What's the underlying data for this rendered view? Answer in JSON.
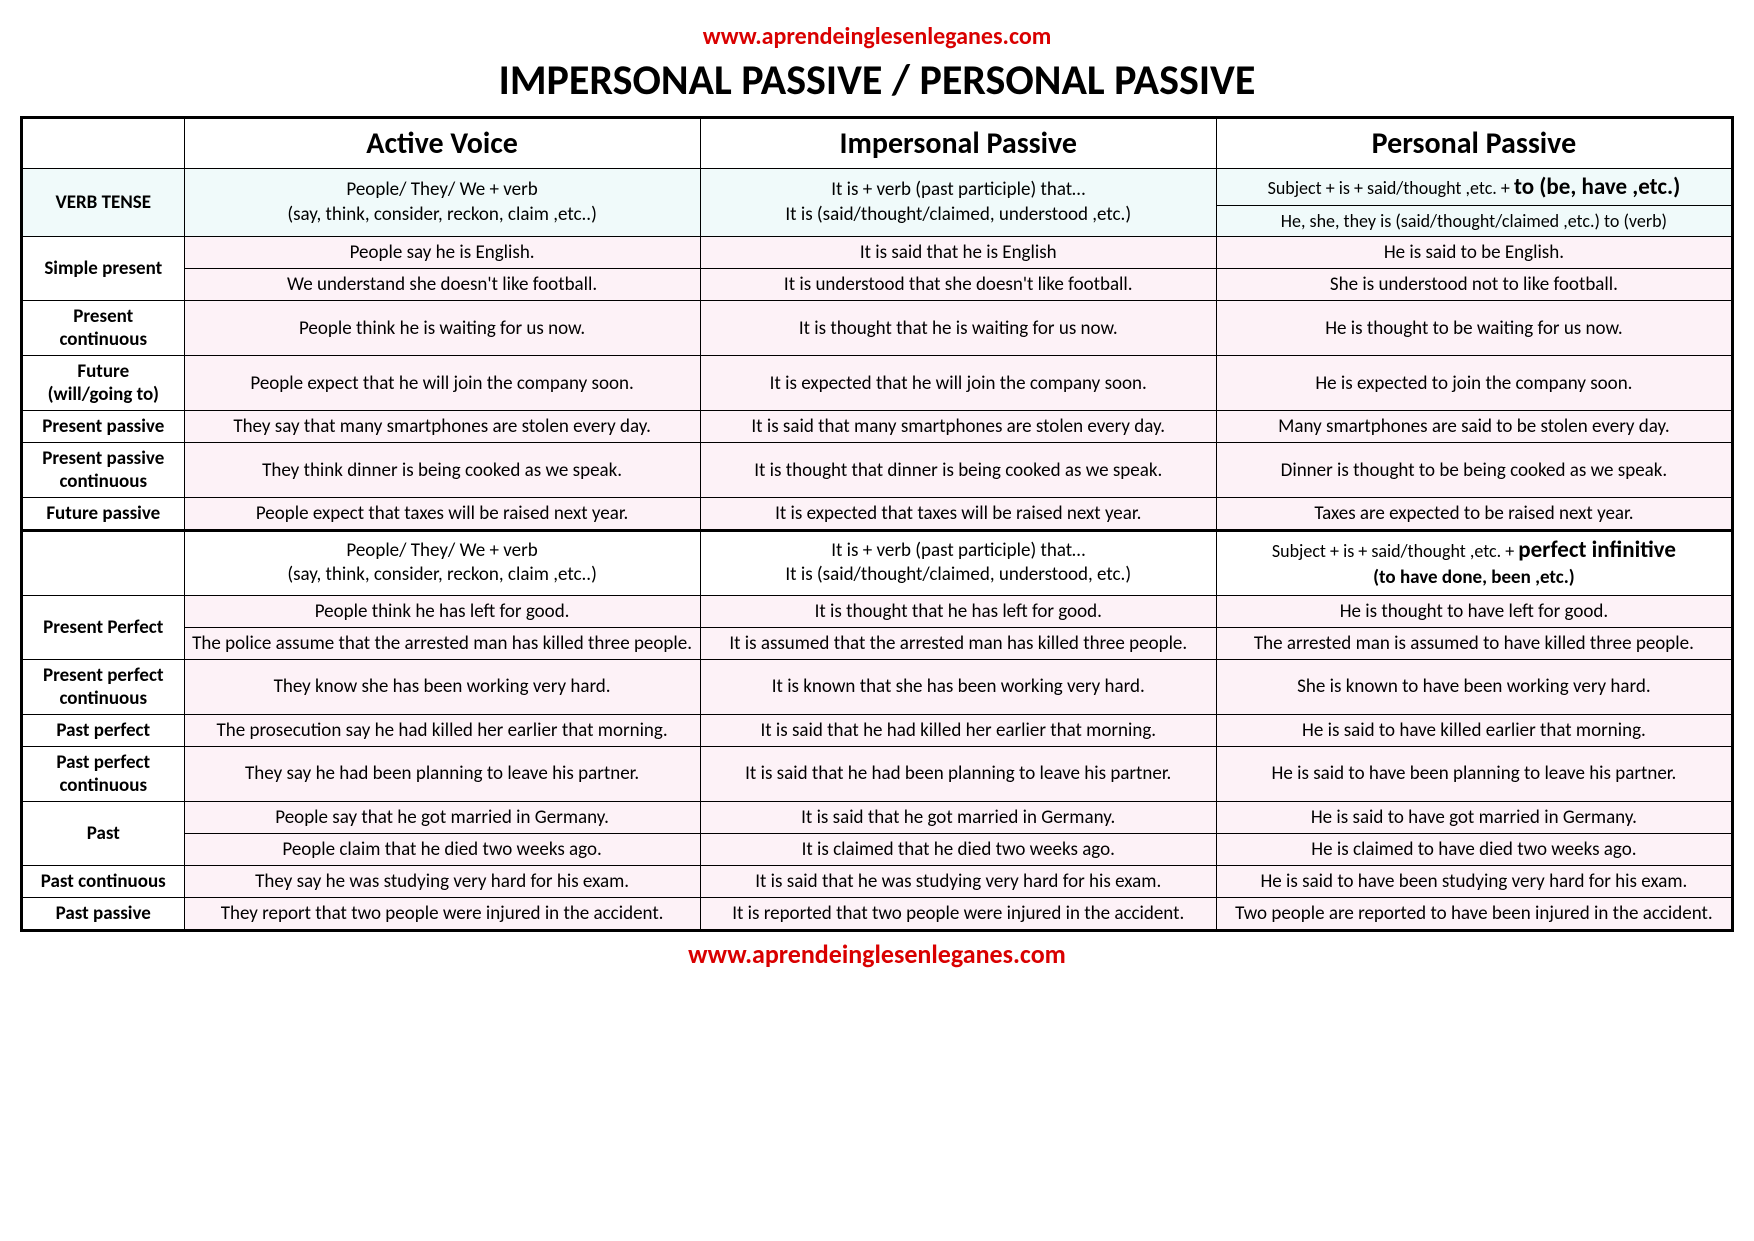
{
  "colors": {
    "url_color": "#d90000",
    "title_color": "#000000",
    "tint_header_bg": "#f0fafa",
    "pink_bg": "#fdf2f7",
    "border": "#000000"
  },
  "url": "www.aprendeinglesenleganes.com",
  "title": "IMPERSONAL PASSIVE / PERSONAL PASSIVE",
  "columns": {
    "tense": "VERB TENSE",
    "active": "Active Voice",
    "impersonal": "Impersonal Passive",
    "personal": "Personal Passive"
  },
  "formula1": {
    "active_l1": "People/ They/ We + verb",
    "active_l2": "(say, think, consider, reckon, claim ,etc..)",
    "impersonal_l1": "It is + verb (past participle) that…",
    "impersonal_l2": "It is (said/thought/claimed, understood ,etc.)",
    "personal_top_pre": "Subject + is + said/thought ,etc. + ",
    "personal_top_bold": "to (be, have ,etc.)",
    "personal_bottom": "He, she, they is (said/thought/claimed ,etc.) to (verb)"
  },
  "rows1": [
    {
      "tense": "Simple present",
      "span": 2,
      "cells": [
        [
          "People say he is English.",
          "It is said that he is English",
          "He is said to be English."
        ],
        [
          "We understand she doesn't like football.",
          "It is understood that she doesn't like football.",
          "She is understood not to like football."
        ]
      ]
    },
    {
      "tense": "Present continuous",
      "span": 1,
      "cells": [
        [
          "People think he is waiting for us now.",
          "It is thought that he is waiting for us now.",
          "He is thought to be waiting for us now."
        ]
      ]
    },
    {
      "tense": "Future (will/going to)",
      "span": 1,
      "cells": [
        [
          "People expect that he will join the company soon.",
          "It is expected that he will join the company soon.",
          "He is expected to join the company soon."
        ]
      ]
    },
    {
      "tense": "Present passive",
      "span": 1,
      "cells": [
        [
          "They say that many smartphones are stolen every day.",
          "It is said that  many smartphones are stolen every day.",
          "Many smartphones are said to be stolen every day."
        ]
      ]
    },
    {
      "tense": "Present passive continuous",
      "span": 1,
      "cells": [
        [
          "They think dinner is being cooked as we speak.",
          "It is thought that dinner is being cooked as we speak.",
          "Dinner is thought to be being cooked as we speak."
        ]
      ]
    },
    {
      "tense": "Future passive",
      "span": 1,
      "cells": [
        [
          "People expect that taxes will be raised next year.",
          "It is expected that taxes will be raised next year.",
          "Taxes are expected to be raised next year."
        ]
      ]
    }
  ],
  "formula2": {
    "active_l1": "People/ They/ We + verb",
    "active_l2": "(say, think, consider, reckon, claim ,etc..)",
    "impersonal_l1": "It is + verb (past participle) that…",
    "impersonal_l2": "It is (said/thought/claimed, understood, etc.)",
    "personal_pre": "Subject + is + said/thought ,etc. + ",
    "personal_bold": "perfect infinitive",
    "personal_l2": "(to have done, been ,etc.)"
  },
  "rows2": [
    {
      "tense": "Present Perfect",
      "span": 2,
      "cells": [
        [
          "People think he has left for good.",
          "It is thought that he has left for good.",
          "He is thought to have left for good."
        ],
        [
          "The police assume that the arrested man has killed three people.",
          "It is assumed that the arrested man has killed three people.",
          "The arrested man is assumed to have killed three people."
        ]
      ]
    },
    {
      "tense": "Present perfect continuous",
      "span": 1,
      "cells": [
        [
          "They know she has been working very hard.",
          "It is known that she has been working very hard.",
          "She is known to have been working very hard."
        ]
      ]
    },
    {
      "tense": "Past perfect",
      "span": 1,
      "cells": [
        [
          "The prosecution say he had killed her earlier that morning.",
          "It is said that he had killed her earlier that morning.",
          "He is said to have killed earlier that morning."
        ]
      ]
    },
    {
      "tense": "Past perfect continuous",
      "span": 1,
      "cells": [
        [
          "They say he had been planning to leave his partner.",
          "It is said that he had been planning to leave his partner.",
          "He is said to have been planning to leave his partner."
        ]
      ]
    },
    {
      "tense": "Past",
      "span": 2,
      "cells": [
        [
          "People say that he got married in Germany.",
          "It is said that he got married in Germany.",
          "He is said to have got married in Germany."
        ],
        [
          "People claim that he died two weeks ago.",
          "It is claimed that he died two weeks ago.",
          "He is claimed to have died two weeks ago."
        ]
      ]
    },
    {
      "tense": "Past continuous",
      "span": 1,
      "cells": [
        [
          "They say he was studying very hard for his exam.",
          "It is said that he was studying very hard for his exam.",
          "He is said to have been studying very hard for his exam."
        ]
      ]
    },
    {
      "tense": "Past passive",
      "span": 1,
      "cells": [
        [
          "They report that two people were injured in the accident.",
          "It is reported that two people were injured in the accident.",
          "Two people are reported to have been injured in the accident."
        ]
      ]
    }
  ]
}
